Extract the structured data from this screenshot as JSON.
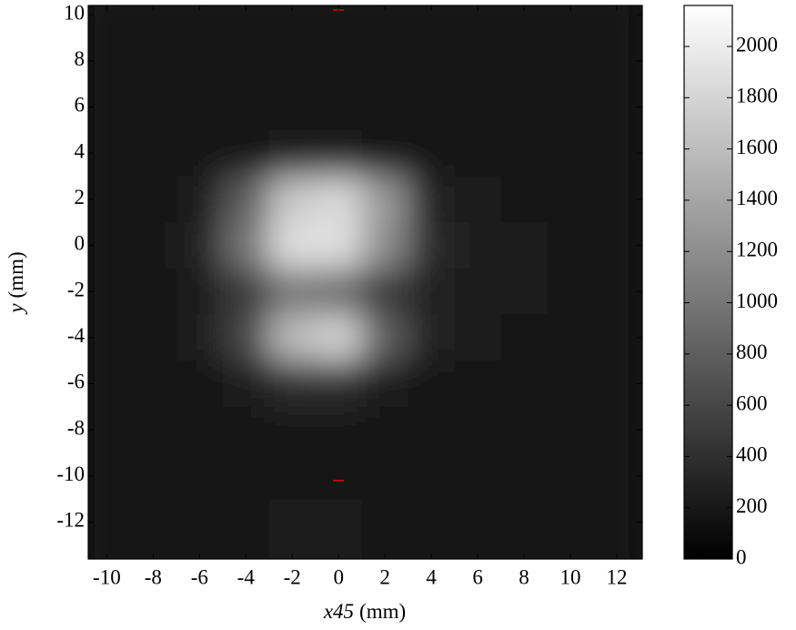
{
  "chart_data": {
    "type": "heatmap",
    "xlabel_var": "x45",
    "xlabel_unit": "(mm)",
    "ylabel_var": "y",
    "ylabel_unit": "(mm)",
    "x": [
      -10,
      -8,
      -6,
      -4,
      -2,
      0,
      2,
      4,
      6,
      8,
      10,
      12
    ],
    "y": [
      10,
      8,
      6,
      4,
      2,
      0,
      -2,
      -4,
      -6,
      -8,
      -10,
      -12,
      -14
    ],
    "z": [
      [
        150,
        150,
        150,
        150,
        150,
        150,
        150,
        150,
        150,
        150,
        150,
        150
      ],
      [
        150,
        150,
        150,
        150,
        150,
        150,
        150,
        150,
        150,
        150,
        150,
        150
      ],
      [
        150,
        150,
        150,
        160,
        170,
        170,
        160,
        150,
        150,
        150,
        150,
        150
      ],
      [
        150,
        150,
        160,
        200,
        250,
        260,
        200,
        160,
        150,
        150,
        150,
        150
      ],
      [
        150,
        160,
        250,
        800,
        1700,
        1850,
        1300,
        300,
        220,
        180,
        160,
        150
      ],
      [
        150,
        160,
        300,
        1000,
        1900,
        1900,
        1200,
        350,
        250,
        220,
        180,
        150
      ],
      [
        150,
        160,
        250,
        500,
        1000,
        900,
        500,
        300,
        250,
        220,
        180,
        150
      ],
      [
        150,
        160,
        220,
        600,
        1600,
        1800,
        800,
        300,
        230,
        200,
        170,
        150
      ],
      [
        150,
        150,
        180,
        250,
        400,
        400,
        250,
        200,
        180,
        170,
        150,
        150
      ],
      [
        150,
        150,
        160,
        180,
        200,
        200,
        180,
        160,
        150,
        150,
        150,
        150
      ],
      [
        150,
        150,
        150,
        160,
        170,
        180,
        170,
        150,
        150,
        150,
        150,
        150
      ],
      [
        150,
        150,
        160,
        180,
        220,
        230,
        180,
        160,
        150,
        150,
        150,
        150
      ],
      [
        150,
        150,
        160,
        190,
        250,
        250,
        190,
        160,
        150,
        150,
        150,
        150
      ]
    ],
    "xlim": [
      -10.8,
      13.1
    ],
    "ylim": [
      -13.6,
      10.4
    ],
    "xticks": [
      -10,
      -8,
      -6,
      -4,
      -2,
      0,
      2,
      4,
      6,
      8,
      10,
      12
    ],
    "yticks": [
      10,
      8,
      6,
      4,
      2,
      0,
      -2,
      -4,
      -6,
      -8,
      -10,
      -12
    ],
    "clim": [
      0,
      2160
    ],
    "cticks": [
      0,
      200,
      400,
      600,
      800,
      1000,
      1200,
      1400,
      1600,
      1800,
      2000
    ],
    "markers": [
      {
        "x": 0,
        "y": 10.2
      },
      {
        "x": 0,
        "y": -10.2
      }
    ],
    "marker_color": "#d01010"
  }
}
